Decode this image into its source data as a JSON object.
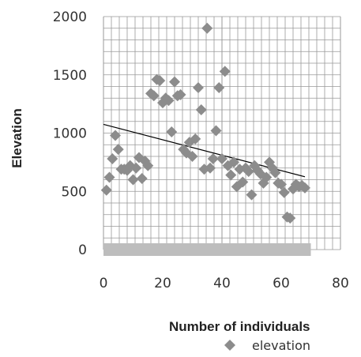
{
  "chart_data": {
    "type": "scatter",
    "title": "",
    "xlabel": "Number of individuals",
    "ylabel": "Elevation",
    "xlim": [
      0,
      80
    ],
    "ylim": [
      0,
      2000
    ],
    "x_ticks": [
      "0",
      "20",
      "40",
      "60",
      "80"
    ],
    "y_ticks": [
      "0",
      "500",
      "1000",
      "1500",
      "2000"
    ],
    "grid": true,
    "legend_position": "bottom-right",
    "marker_color": "#8c8c8c",
    "trend_line_color": "#000000",
    "zero_band_color": "#bdbdbd",
    "zero_band_x_range": [
      0,
      70
    ],
    "series": [
      {
        "name": "elevation",
        "points": [
          [
            1,
            510
          ],
          [
            2,
            620
          ],
          [
            3,
            780
          ],
          [
            4,
            980
          ],
          [
            5,
            860
          ],
          [
            6,
            690
          ],
          [
            7,
            690
          ],
          [
            8,
            680
          ],
          [
            9,
            720
          ],
          [
            10,
            600
          ],
          [
            11,
            700
          ],
          [
            12,
            790
          ],
          [
            13,
            610
          ],
          [
            14,
            760
          ],
          [
            15,
            720
          ],
          [
            16,
            1340
          ],
          [
            17,
            1320
          ],
          [
            18,
            1460
          ],
          [
            19,
            1450
          ],
          [
            20,
            1260
          ],
          [
            21,
            1300
          ],
          [
            22,
            1280
          ],
          [
            23,
            1010
          ],
          [
            24,
            1440
          ],
          [
            25,
            1320
          ],
          [
            26,
            1330
          ],
          [
            27,
            860
          ],
          [
            28,
            830
          ],
          [
            29,
            920
          ],
          [
            30,
            800
          ],
          [
            31,
            950
          ],
          [
            32,
            1390
          ],
          [
            33,
            1200
          ],
          [
            34,
            690
          ],
          [
            35,
            1900
          ],
          [
            36,
            700
          ],
          [
            37,
            780
          ],
          [
            38,
            1020
          ],
          [
            39,
            1390
          ],
          [
            40,
            780
          ],
          [
            41,
            1530
          ],
          [
            42,
            720
          ],
          [
            43,
            640
          ],
          [
            44,
            750
          ],
          [
            45,
            540
          ],
          [
            46,
            690
          ],
          [
            47,
            580
          ],
          [
            48,
            700
          ],
          [
            49,
            670
          ],
          [
            50,
            470
          ],
          [
            51,
            720
          ],
          [
            52,
            680
          ],
          [
            53,
            650
          ],
          [
            54,
            570
          ],
          [
            55,
            620
          ],
          [
            56,
            750
          ],
          [
            57,
            700
          ],
          [
            58,
            660
          ],
          [
            59,
            570
          ],
          [
            60,
            560
          ],
          [
            61,
            490
          ],
          [
            62,
            280
          ],
          [
            63,
            270
          ],
          [
            64,
            520
          ],
          [
            65,
            560
          ],
          [
            66,
            540
          ],
          [
            67,
            550
          ],
          [
            68,
            530
          ]
        ]
      }
    ],
    "trend_line": {
      "x": [
        0,
        68
      ],
      "y": [
        1075,
        625
      ]
    }
  }
}
